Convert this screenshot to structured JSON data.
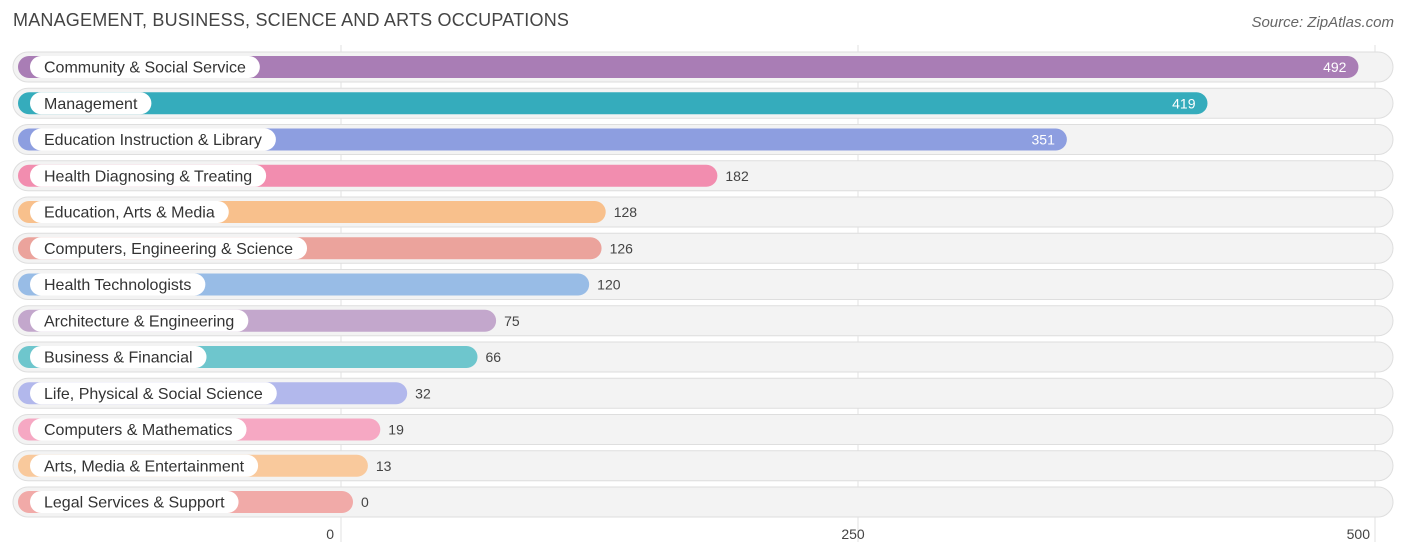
{
  "header": {
    "title": "MANAGEMENT, BUSINESS, SCIENCE AND ARTS OCCUPATIONS",
    "source": "Source: ZipAtlas.com"
  },
  "chart_data": {
    "type": "bar",
    "orientation": "horizontal",
    "title": "MANAGEMENT, BUSINESS, SCIENCE AND ARTS OCCUPATIONS",
    "xlim": [
      0,
      500
    ],
    "ticks": [
      0,
      250,
      500
    ],
    "tick_labels": [
      "0",
      "250",
      "500"
    ],
    "grid": true,
    "categories": [
      "Community & Social Service",
      "Management",
      "Education Instruction & Library",
      "Health Diagnosing & Treating",
      "Education, Arts & Media",
      "Computers, Engineering & Science",
      "Health Technologists",
      "Architecture & Engineering",
      "Business & Financial",
      "Life, Physical & Social Science",
      "Computers & Mathematics",
      "Arts, Media & Entertainment",
      "Legal Services & Support"
    ],
    "values": [
      492,
      419,
      351,
      182,
      128,
      126,
      120,
      75,
      66,
      32,
      19,
      13,
      0
    ],
    "colors": [
      "#a97db5",
      "#35acbc",
      "#8d9ee0",
      "#f28daf",
      "#f8c08c",
      "#eba39c",
      "#98bce6",
      "#c3a7cc",
      "#6ec6cd",
      "#b2b8ec",
      "#f6a8c3",
      "#f9c99c",
      "#f1aaa8"
    ]
  }
}
